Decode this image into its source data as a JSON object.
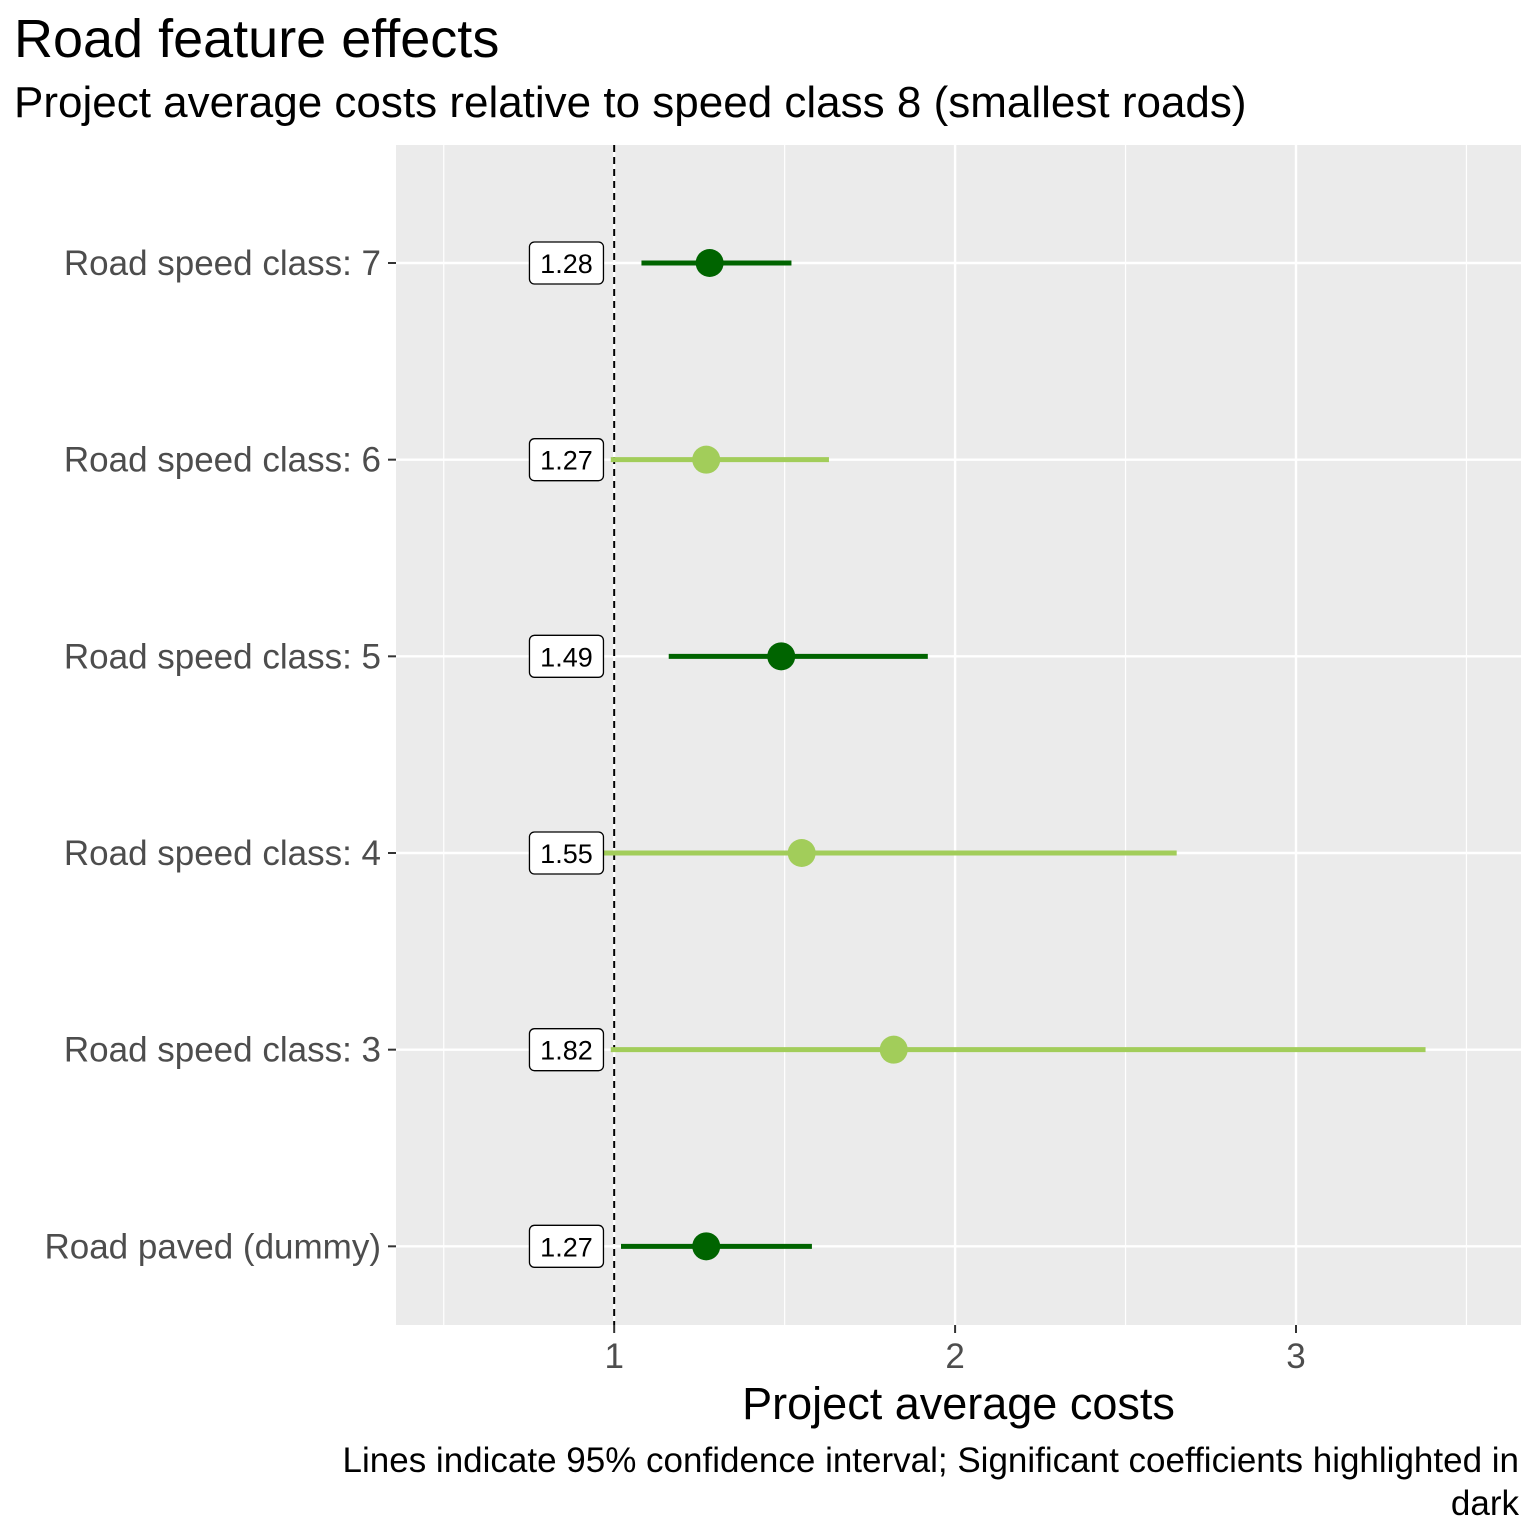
{
  "chart_data": {
    "type": "forest",
    "title": "Road feature effects",
    "subtitle": "Project average costs relative to speed class 8 (smallest roads)",
    "xlabel": "Project average costs",
    "ylabel": "",
    "caption": "Lines indicate 95% confidence interval; Significant coefficients highlighted in dark",
    "xlim": [
      0.36,
      3.66
    ],
    "xticks": [
      1,
      2,
      3
    ],
    "x_minor_gridlines": [
      0.5,
      1.5,
      2.5,
      3.5
    ],
    "reference_line": 1,
    "grid": true,
    "colors": {
      "significant": "#006400",
      "not_significant": "#a2cd5a"
    },
    "rows": [
      {
        "label": "Road speed class: 7",
        "estimate": 1.28,
        "value_label": "1.28",
        "ci_low": 1.08,
        "ci_high": 1.52,
        "significant": true
      },
      {
        "label": "Road speed class: 6",
        "estimate": 1.27,
        "value_label": "1.27",
        "ci_low": 0.99,
        "ci_high": 1.63,
        "significant": false
      },
      {
        "label": "Road speed class: 5",
        "estimate": 1.49,
        "value_label": "1.49",
        "ci_low": 1.16,
        "ci_high": 1.92,
        "significant": true
      },
      {
        "label": "Road speed class: 4",
        "estimate": 1.55,
        "value_label": "1.55",
        "ci_low": 0.9,
        "ci_high": 2.65,
        "significant": false
      },
      {
        "label": "Road speed class: 3",
        "estimate": 1.82,
        "value_label": "1.82",
        "ci_low": 0.99,
        "ci_high": 3.38,
        "significant": false
      },
      {
        "label": "Road paved (dummy)",
        "estimate": 1.27,
        "value_label": "1.27",
        "ci_low": 1.02,
        "ci_high": 1.58,
        "significant": true
      }
    ]
  }
}
